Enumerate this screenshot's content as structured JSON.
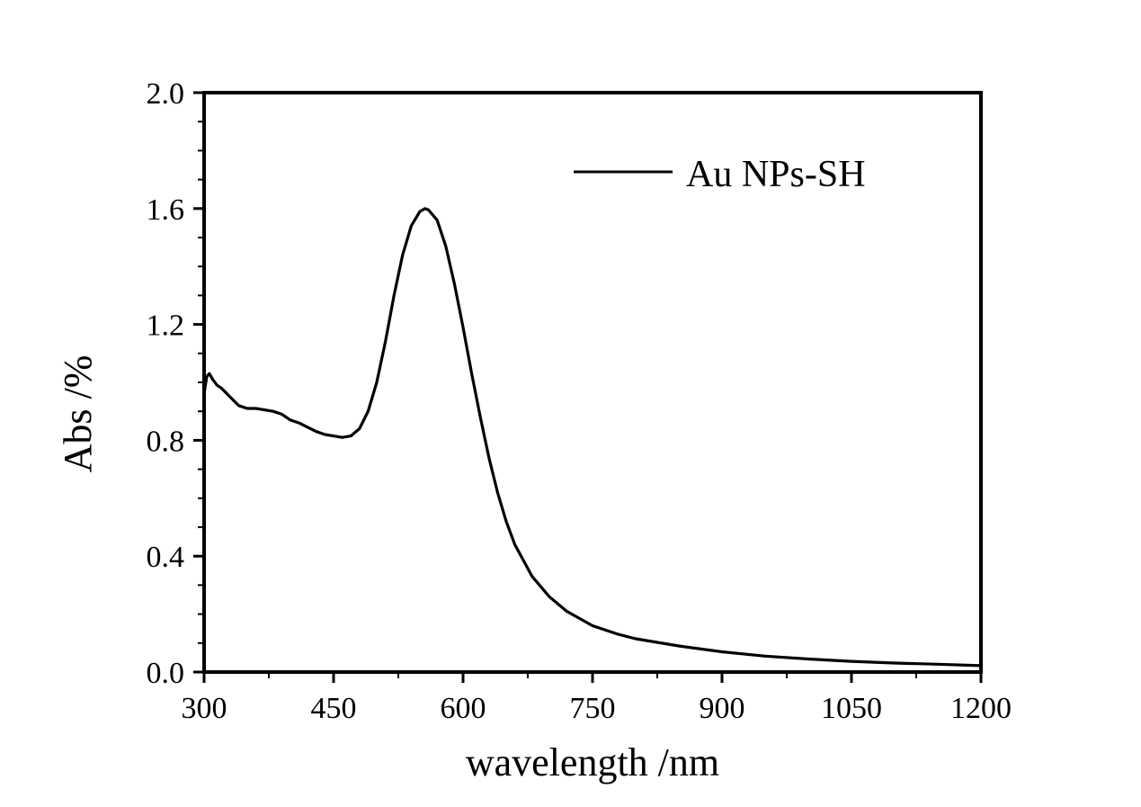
{
  "chart_data": {
    "type": "line",
    "title": "",
    "xlabel": "wavelength /nm",
    "ylabel": "Abs /%",
    "xlim": [
      300,
      1200
    ],
    "ylim": [
      0,
      2.0
    ],
    "x_ticks": [
      300,
      450,
      600,
      750,
      900,
      1050,
      1200
    ],
    "y_ticks": [
      0.0,
      0.4,
      0.8,
      1.2,
      1.6,
      2.0
    ],
    "x_tick_labels": [
      "300",
      "450",
      "600",
      "750",
      "900",
      "1050",
      "1200"
    ],
    "y_tick_labels": [
      "0.0",
      "0.4",
      "0.8",
      "1.2",
      "1.6",
      "2.0"
    ],
    "grid": false,
    "legend": {
      "position": "top-right",
      "entries": [
        "Au NPs-SH"
      ]
    },
    "series": [
      {
        "name": "Au NPs-SH",
        "color": "#000000",
        "x": [
          300,
          303,
          306,
          310,
          315,
          320,
          330,
          340,
          350,
          360,
          370,
          380,
          390,
          400,
          410,
          420,
          430,
          440,
          450,
          460,
          470,
          480,
          490,
          500,
          510,
          520,
          530,
          540,
          550,
          556,
          560,
          570,
          580,
          590,
          600,
          610,
          620,
          630,
          640,
          650,
          660,
          680,
          700,
          720,
          750,
          780,
          800,
          850,
          900,
          950,
          1000,
          1050,
          1100,
          1150,
          1200
        ],
        "y": [
          0.96,
          1.02,
          1.03,
          1.01,
          0.99,
          0.98,
          0.95,
          0.92,
          0.91,
          0.91,
          0.905,
          0.9,
          0.89,
          0.87,
          0.86,
          0.845,
          0.83,
          0.82,
          0.815,
          0.81,
          0.815,
          0.84,
          0.9,
          1.0,
          1.14,
          1.3,
          1.44,
          1.54,
          1.59,
          1.6,
          1.595,
          1.56,
          1.47,
          1.34,
          1.19,
          1.03,
          0.88,
          0.74,
          0.62,
          0.52,
          0.44,
          0.33,
          0.26,
          0.21,
          0.16,
          0.13,
          0.115,
          0.09,
          0.07,
          0.055,
          0.045,
          0.037,
          0.031,
          0.027,
          0.022
        ]
      }
    ]
  }
}
